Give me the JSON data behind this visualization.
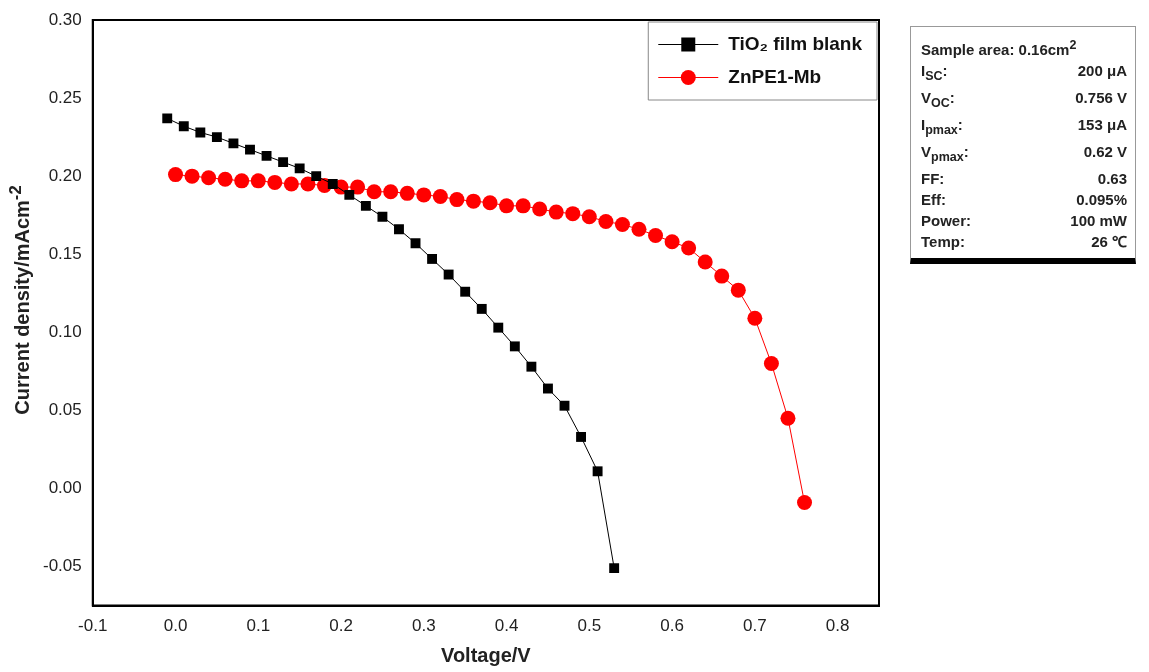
{
  "chart_data": {
    "type": "line",
    "xlabel": "Voltage/V",
    "ylabel": "Current density/mAcm$^{-2}$",
    "xlim": [
      -0.1,
      0.85
    ],
    "xticks": [
      -0.1,
      {
        "value": 0,
        "label": "0.0"
      },
      0.1,
      0.2,
      0.3,
      0.4,
      0.5,
      0.6,
      0.7,
      0.8
    ],
    "ylim": [
      -0.075,
      0.3
    ],
    "yticks": [
      {
        "value": -0.05,
        "label": "-0.05"
      },
      {
        "value": 0,
        "label": "0.00"
      },
      {
        "value": 0.05,
        "label": "0.05"
      },
      {
        "value": 0.1,
        "label": "0.10"
      },
      {
        "value": 0.15,
        "label": "0.15"
      },
      {
        "value": 0.2,
        "label": "0.20"
      },
      {
        "value": 0.25,
        "label": "0.25"
      },
      {
        "value": 0.3,
        "label": "0.30"
      }
    ],
    "grid": false,
    "legend": "top right",
    "line_style": "solid",
    "series": [
      {
        "name": "TiO₂ film blank",
        "color": "#000000",
        "marker": "square",
        "x": [
          -0.01,
          0.01,
          0.03,
          0.05,
          0.07,
          0.09,
          0.11,
          0.13,
          0.15,
          0.17,
          0.19,
          0.21,
          0.23,
          0.25,
          0.27,
          0.29,
          0.31,
          0.33,
          0.35,
          0.37,
          0.39,
          0.41,
          0.43,
          0.45,
          0.47,
          0.49,
          0.51,
          0.53
        ],
        "values": [
          0.237,
          0.232,
          0.228,
          0.225,
          0.221,
          0.217,
          0.213,
          0.209,
          0.205,
          0.2,
          0.195,
          0.188,
          0.181,
          0.174,
          0.166,
          0.157,
          0.147,
          0.137,
          0.126,
          0.115,
          0.103,
          0.091,
          0.078,
          0.064,
          0.053,
          0.033,
          0.011,
          -0.051
        ]
      },
      {
        "name": "ZnPE1-Mb",
        "color": "#ff0000",
        "marker": "circle",
        "x": [
          0,
          0.02,
          0.04,
          0.06,
          0.08,
          0.1,
          0.12,
          0.14,
          0.16,
          0.18,
          0.2,
          0.22,
          0.24,
          0.26,
          0.28,
          0.3,
          0.32,
          0.34,
          0.36,
          0.38,
          0.4,
          0.42,
          0.44,
          0.46,
          0.48,
          0.5,
          0.52,
          0.54,
          0.56,
          0.58,
          0.6,
          0.62,
          0.64,
          0.66,
          0.68,
          0.7,
          0.72,
          0.74,
          0.76
        ],
        "values": [
          0.201,
          0.2,
          0.199,
          0.198,
          0.197,
          0.197,
          0.196,
          0.195,
          0.195,
          0.194,
          0.193,
          0.193,
          0.19,
          0.19,
          0.189,
          0.188,
          0.187,
          0.185,
          0.184,
          0.183,
          0.181,
          0.181,
          0.179,
          0.177,
          0.176,
          0.174,
          0.171,
          0.169,
          0.166,
          0.162,
          0.158,
          0.154,
          0.145,
          0.136,
          0.127,
          0.109,
          0.08,
          0.045,
          -0.009
        ]
      }
    ],
    "annotations": [
      "Sample area: 0.16cm$^{2}$",
      "I$_{SC}$: 200 μA",
      "V$_{OC}$: 0.756 V",
      "I$_{pmax}$: 153 μA",
      "V$_{pmax}$: 0.62 V",
      "FF: 0.63",
      "Eff: 0.095%",
      "Power: 100 mW",
      "Temp: 26 ℃"
    ]
  }
}
